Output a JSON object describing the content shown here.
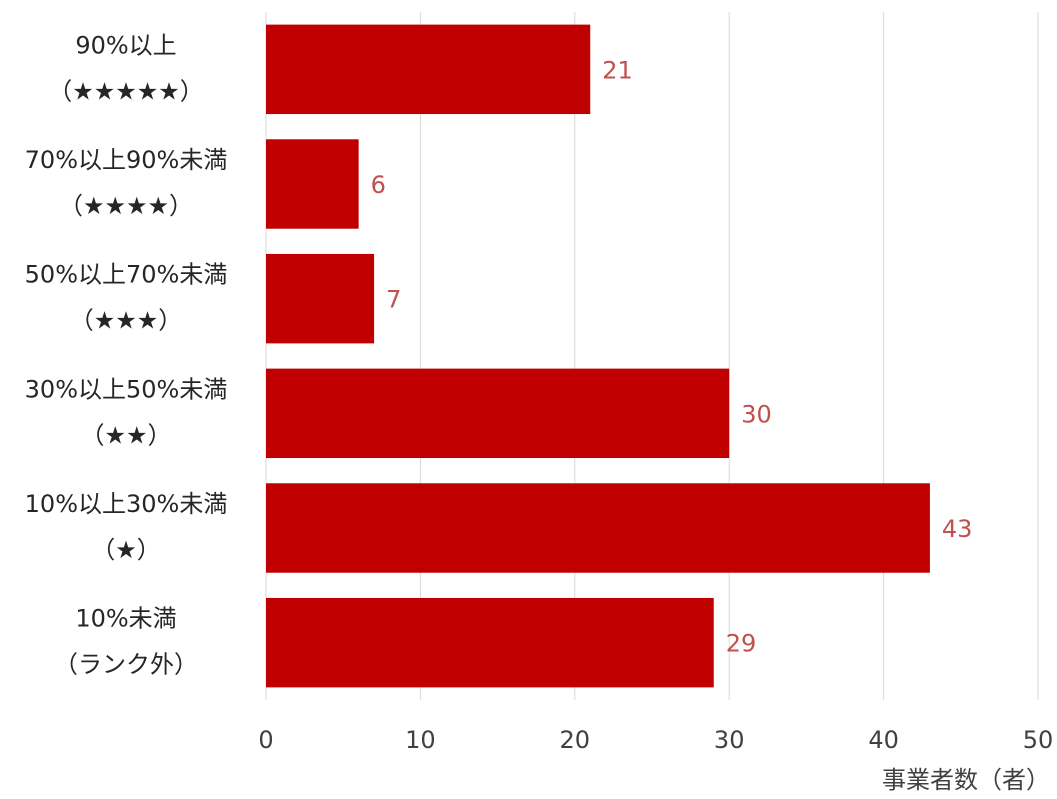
{
  "chart_data": {
    "type": "bar",
    "orientation": "horizontal",
    "categories": [
      [
        "90%以上",
        "（★★★★★）"
      ],
      [
        "70%以上90%未満",
        "（★★★★）"
      ],
      [
        "50%以上70%未満",
        "（★★★）"
      ],
      [
        "30%以上50%未満",
        "（★★）"
      ],
      [
        "10%以上30%未満",
        "（★）"
      ],
      [
        "10%未満",
        "（ランク外）"
      ]
    ],
    "values": [
      21,
      6,
      7,
      30,
      43,
      29
    ],
    "xlabel": "事業者数（者）",
    "xlim": [
      0,
      50
    ],
    "xticks": [
      0,
      10,
      20,
      30,
      40,
      50
    ],
    "grid": "vertical",
    "legend": "none",
    "colors": {
      "bar": "#c00000",
      "data_label": "#c0504d",
      "grid": "#d9d9d9"
    }
  }
}
